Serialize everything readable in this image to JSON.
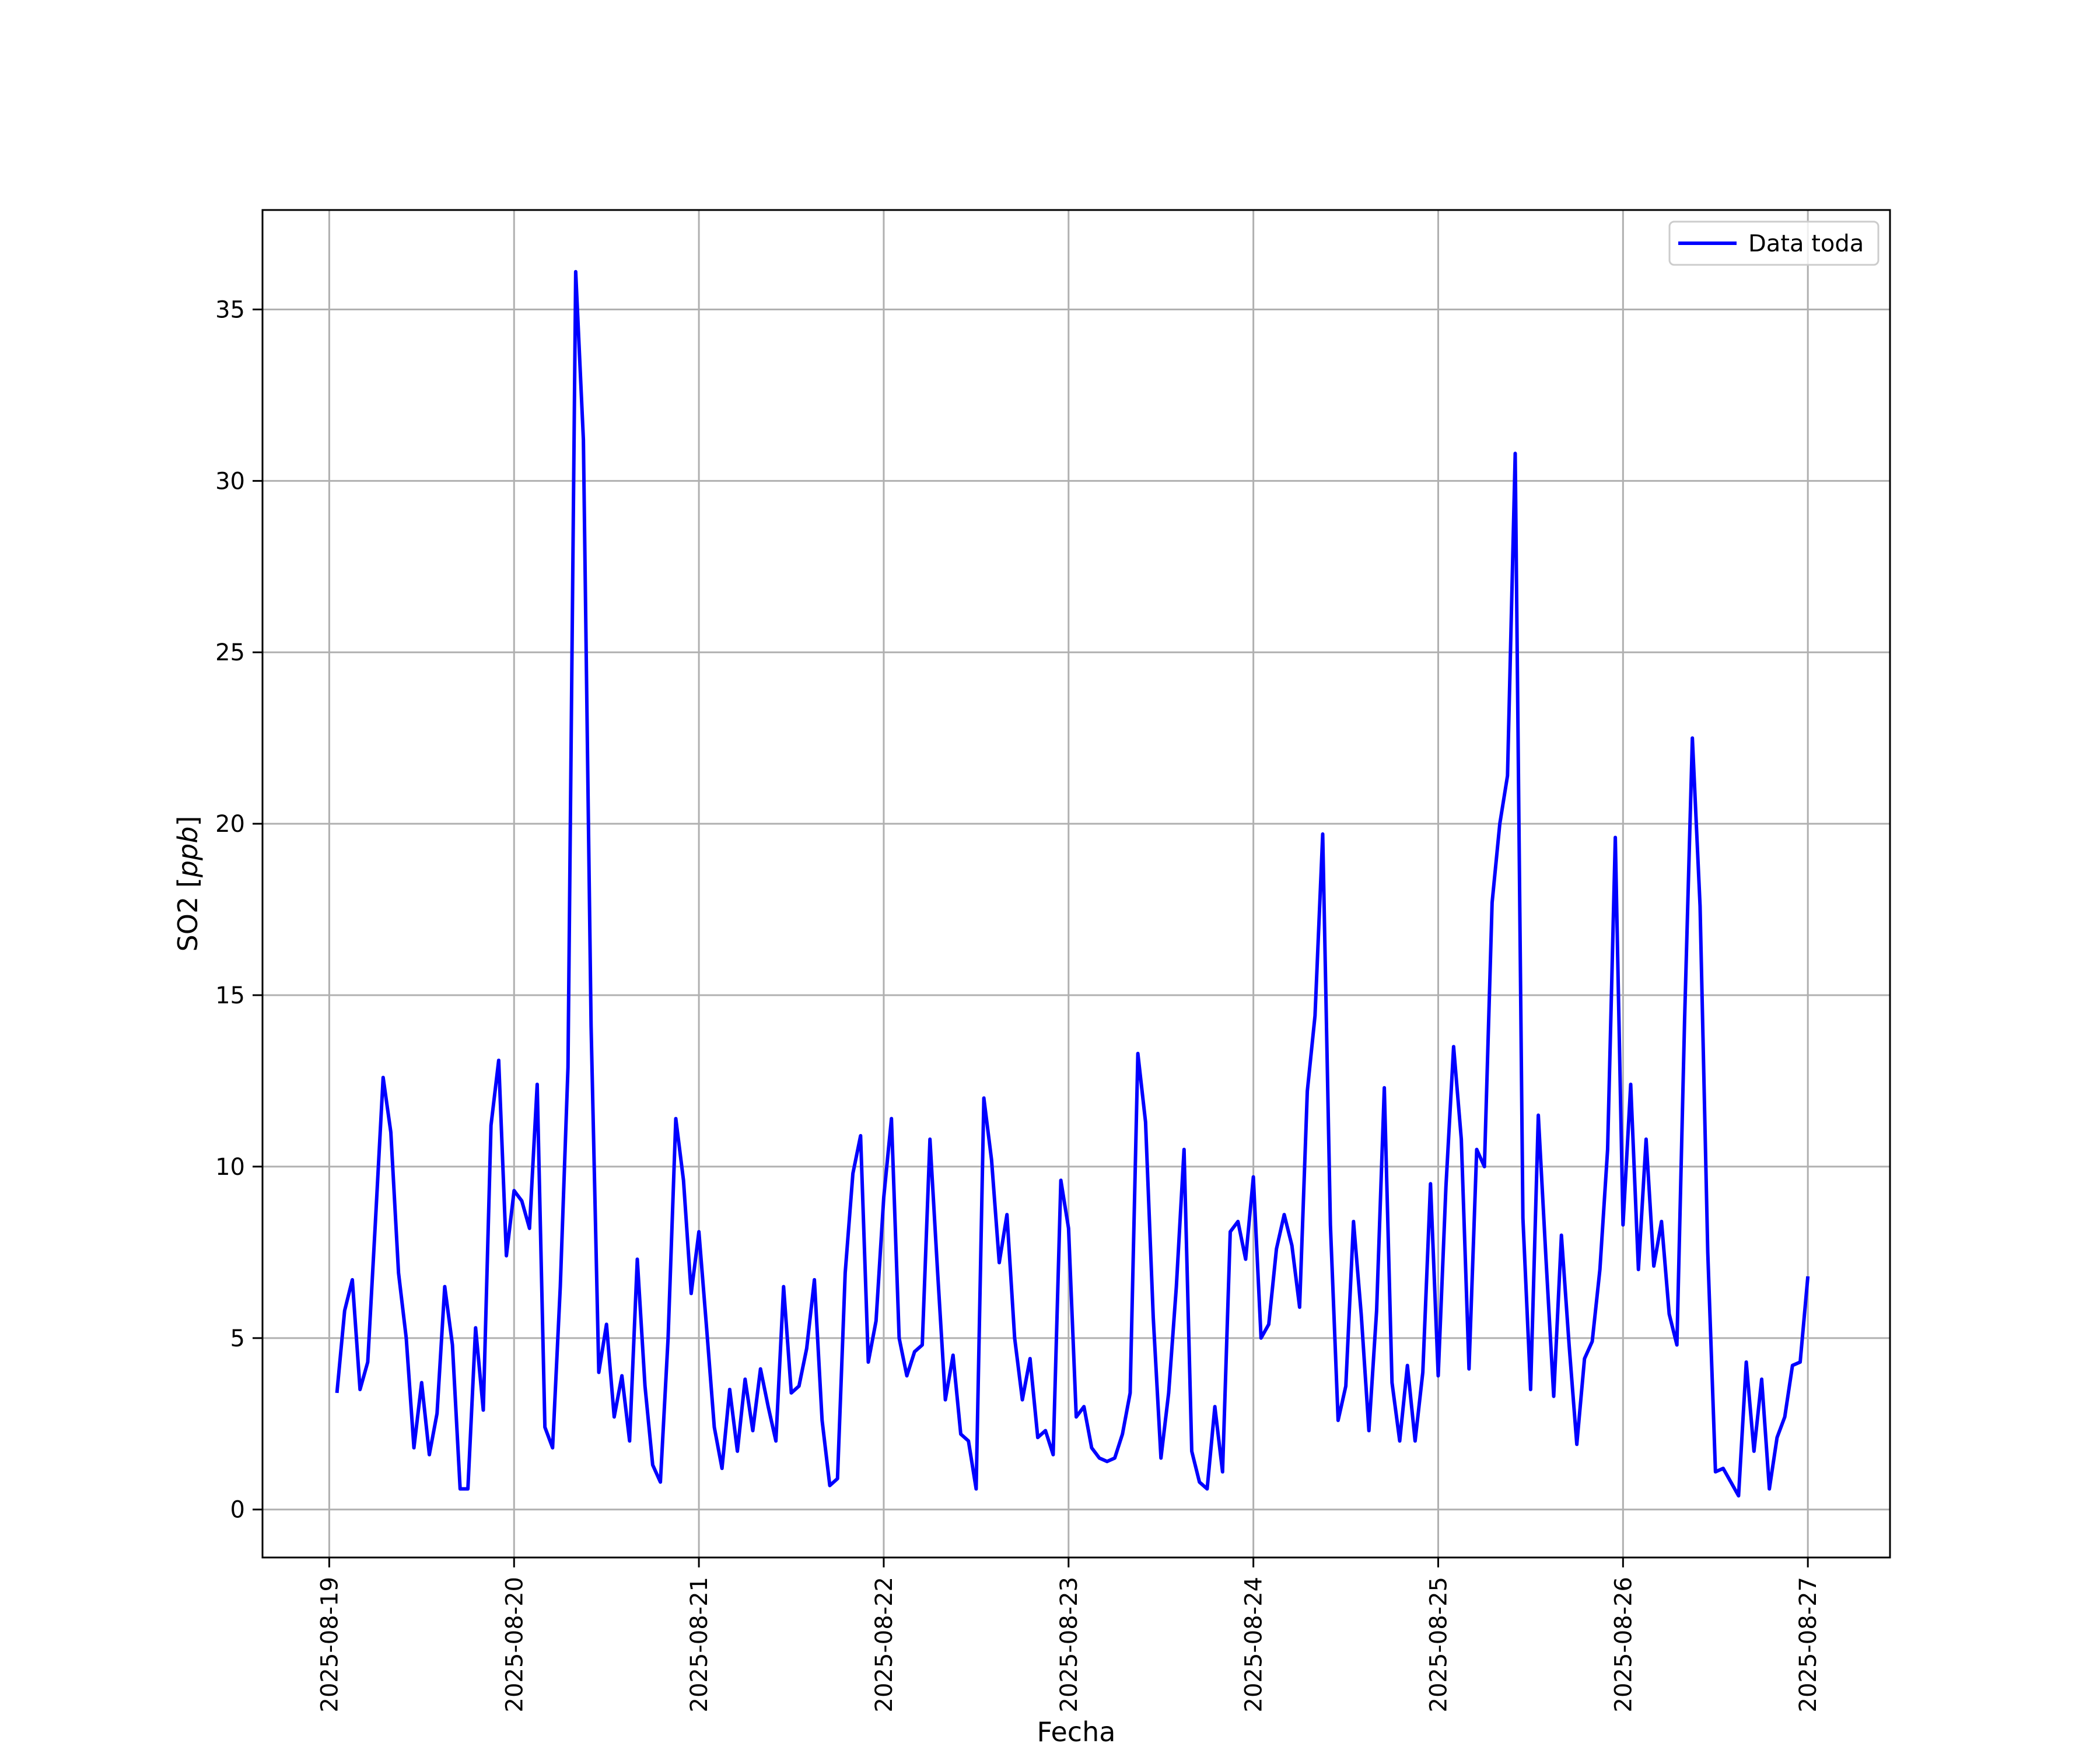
{
  "chart_data": {
    "type": "line",
    "title": "",
    "xlabel": "Fecha",
    "ylabel": "SO2 [",
    "ylabel_unit": "ppb",
    "ylabel_close": "]",
    "ylim": [
      -1.4,
      37.9
    ],
    "xlim": [
      "2025-08-18 15:20",
      "2025-08-27 10:40"
    ],
    "grid": true,
    "legend_position": "top-right",
    "x_tick_labels": [
      "2025-08-19",
      "2025-08-20",
      "2025-08-21",
      "2025-08-22",
      "2025-08-23",
      "2025-08-24",
      "2025-08-25",
      "2025-08-26",
      "2025-08-27"
    ],
    "y_ticks": [
      0,
      5,
      10,
      15,
      20,
      25,
      30,
      35
    ],
    "y_tick_labels": [
      "0",
      "5",
      "10",
      "15",
      "20",
      "25",
      "30",
      "35"
    ],
    "series": [
      {
        "name": "Data toda",
        "color": "#0000ff",
        "sampling_hours": 1,
        "x_start": "2025-08-19 01:00",
        "values": [
          3.4,
          5.8,
          6.7,
          3.5,
          4.3,
          8.4,
          12.6,
          11.0,
          6.9,
          5.0,
          1.8,
          3.7,
          1.6,
          2.8,
          6.5,
          4.8,
          0.6,
          0.6,
          5.3,
          2.9,
          11.2,
          13.1,
          7.4,
          9.3,
          9.0,
          8.2,
          12.4,
          2.4,
          1.8,
          6.5,
          12.9,
          36.1,
          31.2,
          14.1,
          4.0,
          5.4,
          2.7,
          3.9,
          2.0,
          7.3,
          3.6,
          1.3,
          0.8,
          5.0,
          11.4,
          9.6,
          6.3,
          8.1,
          5.3,
          2.4,
          1.2,
          3.5,
          1.7,
          3.8,
          2.3,
          4.1,
          3.0,
          2.0,
          6.5,
          3.4,
          3.6,
          4.7,
          6.7,
          2.6,
          0.7,
          0.9,
          6.9,
          9.8,
          10.9,
          4.3,
          5.5,
          9.1,
          11.4,
          5.0,
          3.9,
          4.6,
          4.8,
          10.8,
          6.9,
          3.2,
          4.5,
          2.2,
          2.0,
          0.6,
          12.0,
          10.2,
          7.2,
          8.6,
          5.0,
          3.2,
          4.4,
          2.1,
          2.3,
          1.6,
          9.6,
          8.2,
          2.7,
          3.0,
          1.8,
          1.5,
          1.4,
          1.5,
          2.2,
          3.4,
          13.3,
          11.3,
          5.6,
          1.5,
          3.4,
          6.5,
          10.5,
          1.7,
          0.8,
          0.6,
          3.0,
          1.1,
          8.1,
          8.4,
          7.3,
          9.7,
          5.0,
          5.4,
          7.6,
          8.6,
          7.7,
          5.9,
          12.2,
          14.4,
          19.7,
          8.3,
          2.6,
          3.6,
          8.4,
          5.7,
          2.3,
          5.8,
          12.3,
          3.7,
          2.0,
          4.2,
          2.0,
          4.0,
          9.5,
          3.9,
          9.4,
          13.5,
          10.8,
          4.1,
          10.5,
          10.0,
          17.7,
          20.0,
          21.4,
          30.8,
          8.5,
          3.5,
          11.5,
          7.3,
          3.3,
          8.0,
          4.8,
          1.9,
          4.4,
          4.9,
          7.0,
          10.5,
          19.6,
          8.3,
          12.4,
          7.0,
          10.8,
          7.1,
          8.4,
          5.7,
          4.8,
          14.3,
          22.5,
          17.6,
          7.5,
          1.1,
          1.2,
          0.8,
          0.4,
          4.3,
          1.7,
          3.8,
          0.6,
          2.1,
          2.7,
          4.2,
          4.3,
          6.8
        ]
      }
    ]
  }
}
